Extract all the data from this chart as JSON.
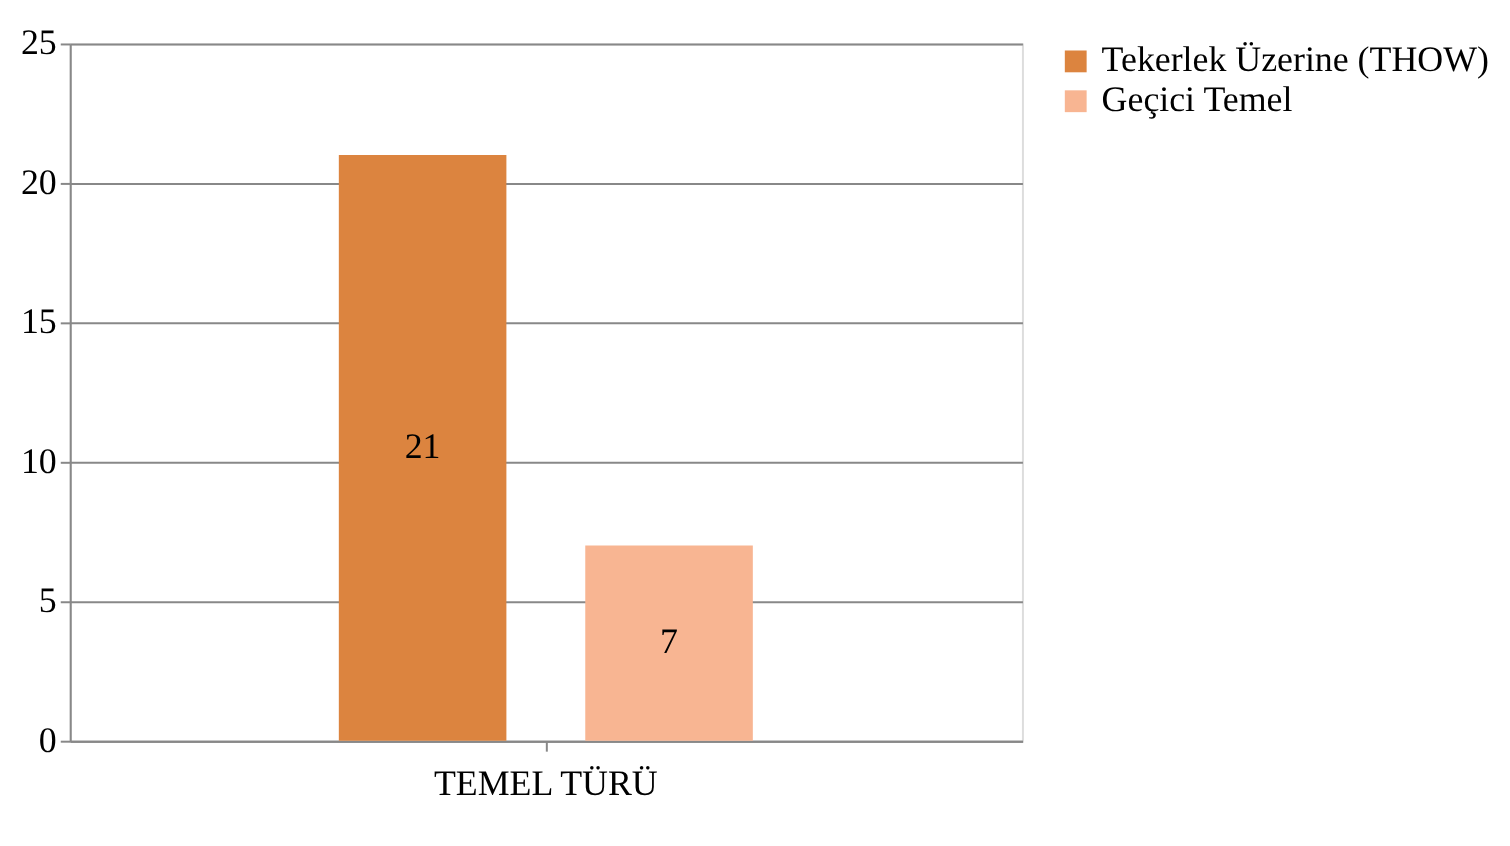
{
  "chart_data": {
    "type": "bar",
    "categories": [
      "TEMEL TÜRÜ"
    ],
    "series": [
      {
        "name": "Tekerlek Üzerine (THOW)",
        "color": "#dc843f",
        "values": [
          21
        ]
      },
      {
        "name": "Geçici Temel",
        "color": "#f8b592",
        "values": [
          7
        ]
      }
    ],
    "ylim": [
      0,
      25
    ],
    "yticks": [
      0,
      5,
      10,
      15,
      20,
      25
    ],
    "grid": "y",
    "legend": "right",
    "data_labels": true
  }
}
